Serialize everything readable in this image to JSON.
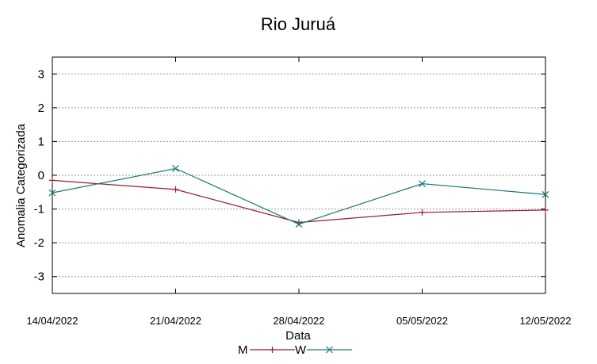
{
  "chart_data": {
    "type": "line",
    "title": "Rio Juruá",
    "xlabel": "Data",
    "ylabel": "Anomalia Categorizada",
    "x": [
      "14/04/2022",
      "21/04/2022",
      "28/04/2022",
      "05/05/2022",
      "12/05/2022"
    ],
    "yticks": [
      "3",
      "2",
      "1",
      "0",
      "-1",
      "-2",
      "-3"
    ],
    "ylim": [
      -3.5,
      3.5
    ],
    "grid": true,
    "legend_position": "bottom",
    "series": [
      {
        "name": "M",
        "color": "#9b1b30",
        "marker": "plus",
        "values": [
          -0.15,
          -0.42,
          -1.4,
          -1.1,
          -1.03
        ]
      },
      {
        "name": "W",
        "color": "#1a7a7a",
        "marker": "cross",
        "values": [
          -0.52,
          0.2,
          -1.45,
          -0.25,
          -0.57
        ]
      }
    ]
  }
}
